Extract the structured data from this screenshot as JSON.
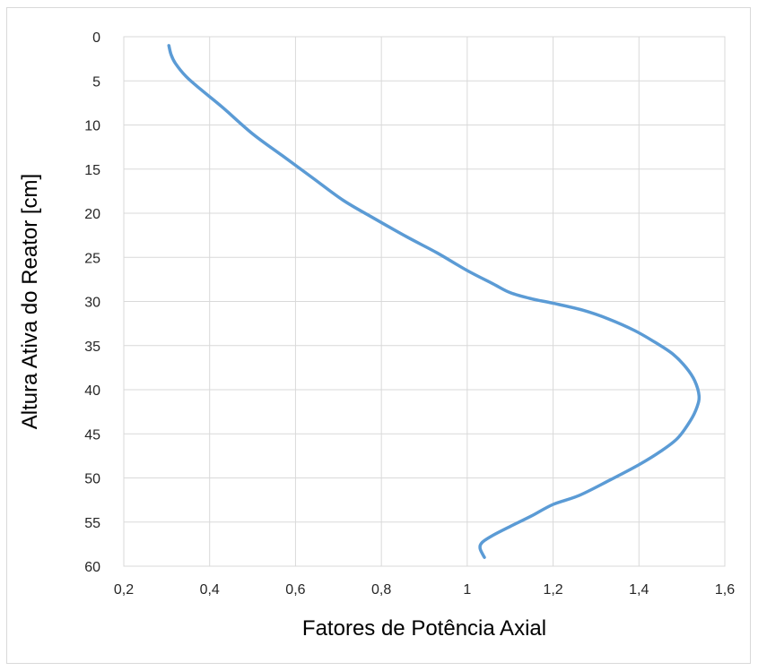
{
  "chart_data": {
    "type": "line",
    "title": "",
    "xlabel": "Fatores de Potência Axial",
    "ylabel": "Altura Ativa do Reator [cm]",
    "xlim": [
      0.2,
      1.6
    ],
    "ylim": [
      0,
      60
    ],
    "y_inverted": true,
    "grid": true,
    "legend": "none",
    "x_ticks": [
      "0,2",
      "0,4",
      "0,6",
      "0,8",
      "1",
      "1,2",
      "1,4",
      "1,6"
    ],
    "x_tick_values": [
      0.2,
      0.4,
      0.6,
      0.8,
      1.0,
      1.2,
      1.4,
      1.6
    ],
    "y_ticks": [
      "0",
      "5",
      "10",
      "15",
      "20",
      "25",
      "30",
      "35",
      "40",
      "45",
      "50",
      "55",
      "60"
    ],
    "y_tick_values": [
      0,
      5,
      10,
      15,
      20,
      25,
      30,
      35,
      40,
      45,
      50,
      55,
      60
    ],
    "series": [
      {
        "color": "#5b9bd5",
        "points": [
          {
            "x": 0.305,
            "y": 1.0
          },
          {
            "x": 0.31,
            "y": 2.0
          },
          {
            "x": 0.32,
            "y": 3.0
          },
          {
            "x": 0.345,
            "y": 4.5
          },
          {
            "x": 0.38,
            "y": 6.0
          },
          {
            "x": 0.43,
            "y": 8.0
          },
          {
            "x": 0.5,
            "y": 11.0
          },
          {
            "x": 0.57,
            "y": 13.5
          },
          {
            "x": 0.64,
            "y": 16.0
          },
          {
            "x": 0.71,
            "y": 18.5
          },
          {
            "x": 0.78,
            "y": 20.5
          },
          {
            "x": 0.86,
            "y": 22.7
          },
          {
            "x": 0.93,
            "y": 24.5
          },
          {
            "x": 1.0,
            "y": 26.5
          },
          {
            "x": 1.06,
            "y": 28.0
          },
          {
            "x": 1.1,
            "y": 29.0
          },
          {
            "x": 1.15,
            "y": 29.7
          },
          {
            "x": 1.2,
            "y": 30.2
          },
          {
            "x": 1.27,
            "y": 31.0
          },
          {
            "x": 1.33,
            "y": 32.0
          },
          {
            "x": 1.39,
            "y": 33.3
          },
          {
            "x": 1.44,
            "y": 34.7
          },
          {
            "x": 1.48,
            "y": 36.0
          },
          {
            "x": 1.51,
            "y": 37.5
          },
          {
            "x": 1.53,
            "y": 39.0
          },
          {
            "x": 1.54,
            "y": 40.7
          },
          {
            "x": 1.535,
            "y": 42.0
          },
          {
            "x": 1.52,
            "y": 43.5
          },
          {
            "x": 1.49,
            "y": 45.5
          },
          {
            "x": 1.45,
            "y": 47.0
          },
          {
            "x": 1.4,
            "y": 48.5
          },
          {
            "x": 1.33,
            "y": 50.3
          },
          {
            "x": 1.26,
            "y": 52.0
          },
          {
            "x": 1.2,
            "y": 53.0
          },
          {
            "x": 1.15,
            "y": 54.3
          },
          {
            "x": 1.1,
            "y": 55.5
          },
          {
            "x": 1.06,
            "y": 56.5
          },
          {
            "x": 1.035,
            "y": 57.3
          },
          {
            "x": 1.03,
            "y": 58.0
          },
          {
            "x": 1.04,
            "y": 59.0
          }
        ]
      }
    ]
  }
}
